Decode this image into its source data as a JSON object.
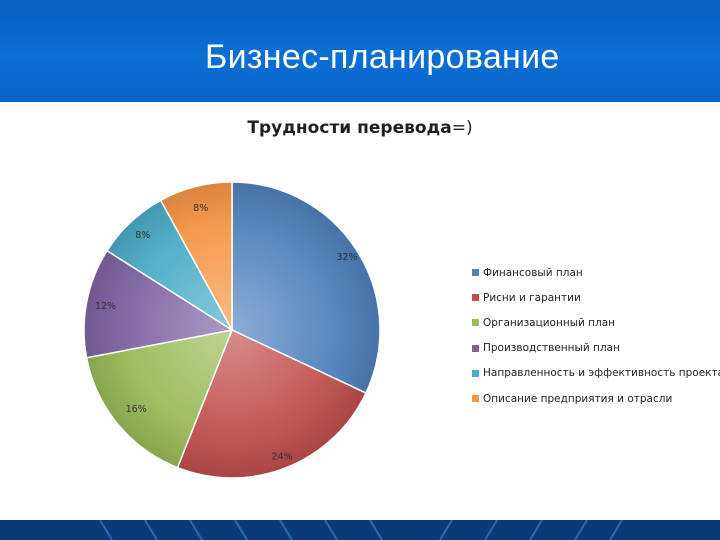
{
  "header": {
    "title": "Бизнес-планирование"
  },
  "chart_data": {
    "type": "pie",
    "title_bold": "Трудности перевода",
    "title_rest": "=)",
    "legend_position": "right",
    "slices": [
      {
        "label": "Финансовый план",
        "value": 32,
        "value_label": "32%",
        "color": "#4f81bd"
      },
      {
        "label": "Рисни и гарантии",
        "value": 24,
        "value_label": "24%",
        "color": "#c0504d"
      },
      {
        "label": "Организационный план",
        "value": 16,
        "value_label": "16%",
        "color": "#9bbb59"
      },
      {
        "label": "Производственный план",
        "value": 12,
        "value_label": "12%",
        "color": "#8064a2"
      },
      {
        "label": "Направленность и эффективность проекта",
        "value": 8,
        "value_label": "8%",
        "color": "#4bacc6"
      },
      {
        "label": "Описание предприятия и отрасли",
        "value": 8,
        "value_label": "8%",
        "color": "#f79646"
      }
    ]
  }
}
